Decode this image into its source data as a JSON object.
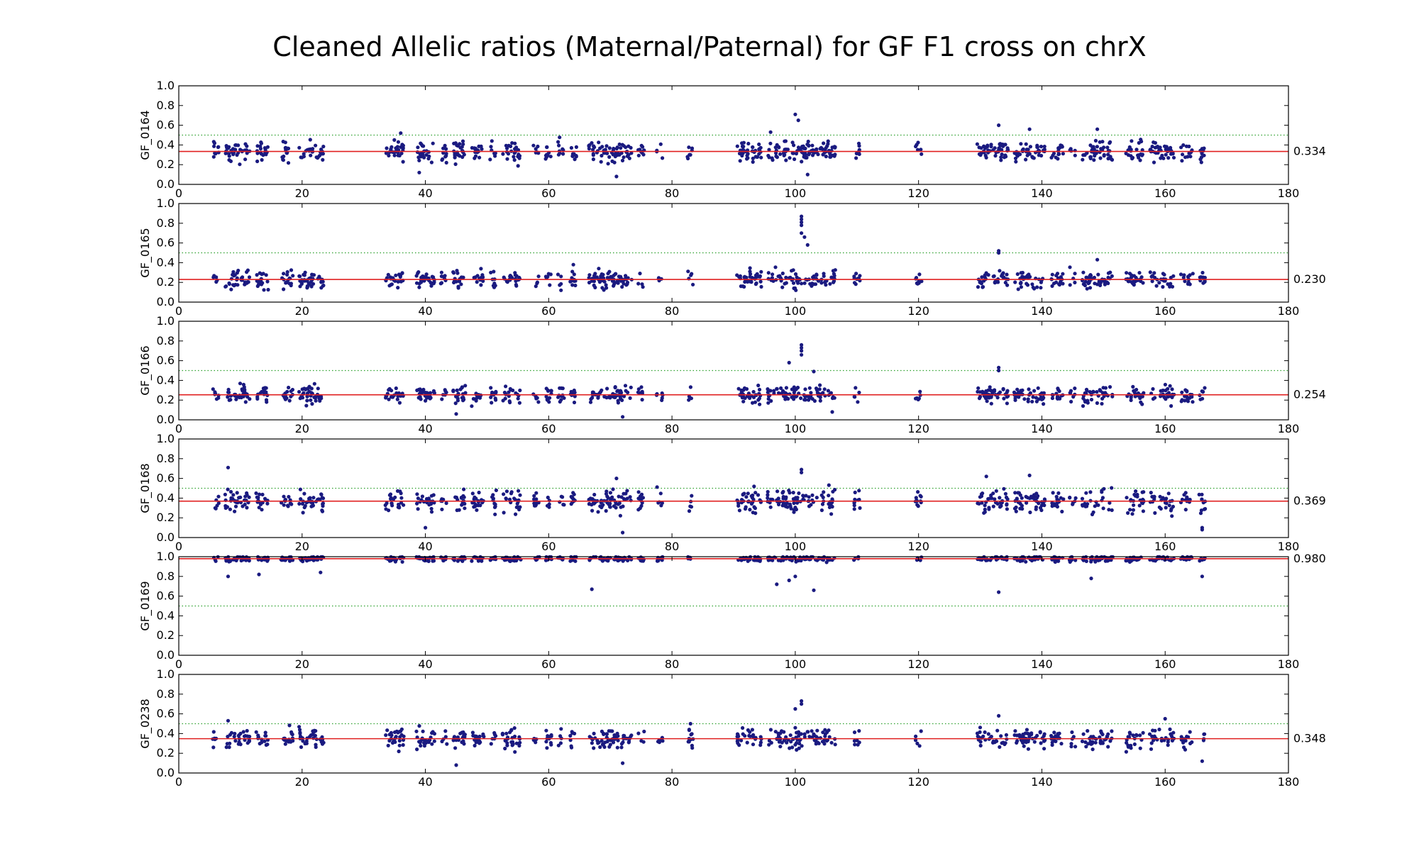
{
  "chart_data": {
    "type": "scatter",
    "title": "Cleaned Allelic ratios (Maternal/Paternal) for GF F1 cross on chrX",
    "xlim": [
      0,
      180
    ],
    "x_ticks": [
      "0",
      "20",
      "40",
      "60",
      "80",
      "100",
      "120",
      "140",
      "160",
      "180"
    ],
    "ylim": [
      0.0,
      1.0
    ],
    "y_ticks": [
      "0.0",
      "0.2",
      "0.4",
      "0.6",
      "0.8",
      "1.0"
    ],
    "reference_line": 0.5,
    "colors": {
      "points": "#1a1a80",
      "mean_line": "#e02020",
      "reference_line": "#2ca02c",
      "axes": "#000000"
    },
    "point_x_clusters": [
      6,
      8,
      9,
      10,
      11,
      13,
      14,
      17,
      18,
      20,
      21,
      22,
      23,
      34,
      35,
      36,
      39,
      40,
      41,
      43,
      45,
      46,
      48,
      49,
      51,
      53,
      54,
      55,
      58,
      60,
      62,
      64,
      67,
      68,
      69,
      70,
      71,
      72,
      73,
      75,
      78,
      83,
      91,
      92,
      93,
      94,
      96,
      97,
      98,
      99,
      100,
      101,
      102,
      103,
      104,
      105,
      106,
      110,
      120,
      130,
      131,
      132,
      133,
      134,
      136,
      137,
      138,
      139,
      140,
      142,
      143,
      145,
      147,
      148,
      149,
      150,
      151,
      154,
      155,
      156,
      158,
      159,
      160,
      161,
      163,
      164,
      166
    ],
    "panels": [
      {
        "sample": "GF_0164",
        "mean": 0.334,
        "mean_label": "0.334",
        "spread": 0.07,
        "outliers": [
          {
            "x": 100,
            "y": 0.71
          },
          {
            "x": 100.5,
            "y": 0.65
          },
          {
            "x": 133,
            "y": 0.6
          },
          {
            "x": 138,
            "y": 0.56
          },
          {
            "x": 149,
            "y": 0.56
          },
          {
            "x": 96,
            "y": 0.53
          },
          {
            "x": 36,
            "y": 0.52
          },
          {
            "x": 71,
            "y": 0.08
          },
          {
            "x": 102,
            "y": 0.1
          },
          {
            "x": 39,
            "y": 0.12
          }
        ]
      },
      {
        "sample": "GF_0165",
        "mean": 0.23,
        "mean_label": "0.230",
        "spread": 0.06,
        "outliers": [
          {
            "x": 101,
            "y": 0.87
          },
          {
            "x": 101,
            "y": 0.84
          },
          {
            "x": 101,
            "y": 0.81
          },
          {
            "x": 101,
            "y": 0.78
          },
          {
            "x": 101,
            "y": 0.7
          },
          {
            "x": 101.5,
            "y": 0.66
          },
          {
            "x": 102,
            "y": 0.58
          },
          {
            "x": 133,
            "y": 0.52
          },
          {
            "x": 133,
            "y": 0.5
          },
          {
            "x": 149,
            "y": 0.43
          },
          {
            "x": 64,
            "y": 0.38
          },
          {
            "x": 62,
            "y": 0.12
          }
        ]
      },
      {
        "sample": "GF_0166",
        "mean": 0.254,
        "mean_label": "0.254",
        "spread": 0.06,
        "outliers": [
          {
            "x": 101,
            "y": 0.76
          },
          {
            "x": 101,
            "y": 0.73
          },
          {
            "x": 101,
            "y": 0.7
          },
          {
            "x": 101,
            "y": 0.66
          },
          {
            "x": 99,
            "y": 0.58
          },
          {
            "x": 133,
            "y": 0.53
          },
          {
            "x": 133,
            "y": 0.5
          },
          {
            "x": 103,
            "y": 0.49
          },
          {
            "x": 72,
            "y": 0.03
          },
          {
            "x": 45,
            "y": 0.06
          },
          {
            "x": 106,
            "y": 0.08
          }
        ]
      },
      {
        "sample": "GF_0168",
        "mean": 0.369,
        "mean_label": "0.369",
        "spread": 0.08,
        "outliers": [
          {
            "x": 8,
            "y": 0.71
          },
          {
            "x": 101,
            "y": 0.69
          },
          {
            "x": 101,
            "y": 0.66
          },
          {
            "x": 138,
            "y": 0.63
          },
          {
            "x": 131,
            "y": 0.62
          },
          {
            "x": 71,
            "y": 0.6
          },
          {
            "x": 166,
            "y": 0.08
          },
          {
            "x": 166,
            "y": 0.1
          },
          {
            "x": 72,
            "y": 0.05
          },
          {
            "x": 40,
            "y": 0.1
          }
        ]
      },
      {
        "sample": "GF_0169",
        "mean": 0.98,
        "mean_label": "0.980",
        "spread": 0.02,
        "outliers": [
          {
            "x": 67,
            "y": 0.67
          },
          {
            "x": 103,
            "y": 0.66
          },
          {
            "x": 133,
            "y": 0.64
          },
          {
            "x": 97,
            "y": 0.72
          },
          {
            "x": 99,
            "y": 0.76
          },
          {
            "x": 100,
            "y": 0.8
          },
          {
            "x": 8,
            "y": 0.8
          },
          {
            "x": 13,
            "y": 0.82
          },
          {
            "x": 148,
            "y": 0.78
          },
          {
            "x": 166,
            "y": 0.8
          },
          {
            "x": 23,
            "y": 0.84
          }
        ]
      },
      {
        "sample": "GF_0238",
        "mean": 0.348,
        "mean_label": "0.348",
        "spread": 0.07,
        "outliers": [
          {
            "x": 101,
            "y": 0.73
          },
          {
            "x": 101,
            "y": 0.7
          },
          {
            "x": 100,
            "y": 0.65
          },
          {
            "x": 133,
            "y": 0.58
          },
          {
            "x": 8,
            "y": 0.53
          },
          {
            "x": 83,
            "y": 0.5
          },
          {
            "x": 160,
            "y": 0.55
          },
          {
            "x": 45,
            "y": 0.08
          },
          {
            "x": 166,
            "y": 0.12
          },
          {
            "x": 72,
            "y": 0.1
          }
        ]
      }
    ]
  }
}
